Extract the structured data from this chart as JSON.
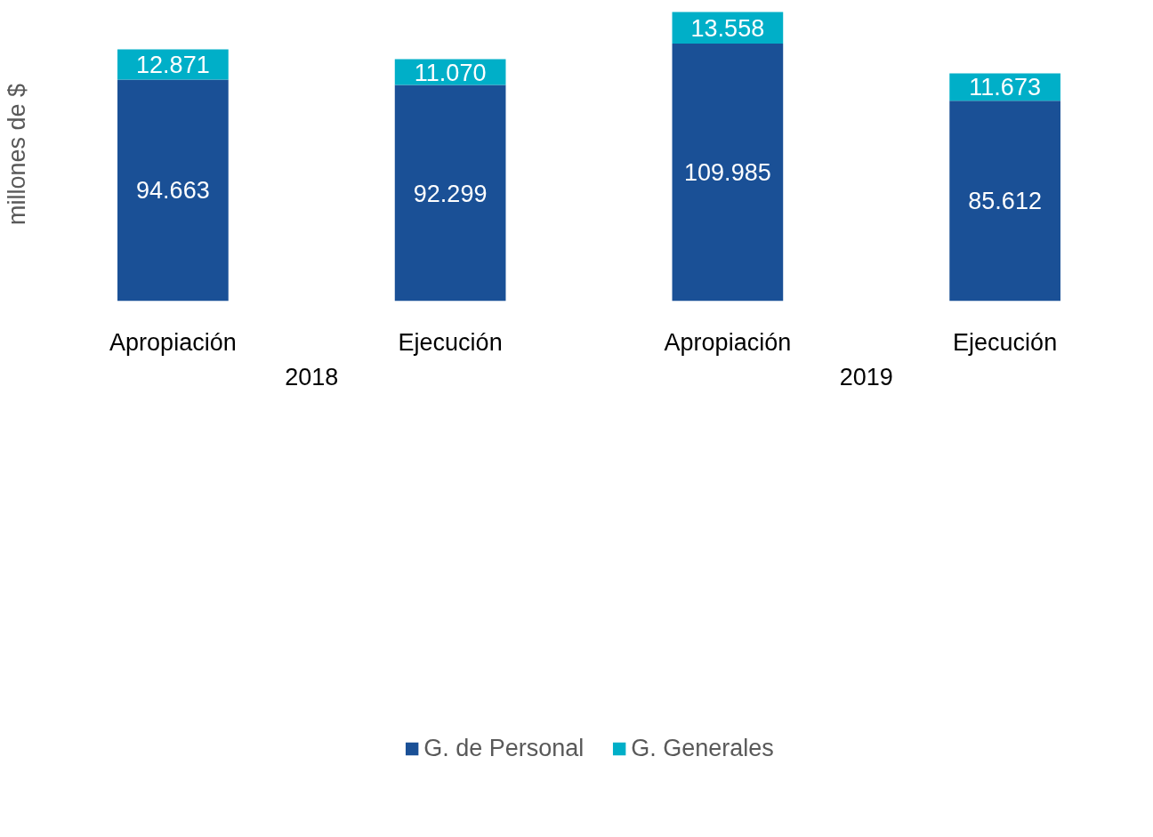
{
  "chart_data": {
    "type": "bar",
    "stacked": true,
    "ylabel": "millones de $",
    "categories": [
      "Apropiación",
      "Ejecución",
      "Apropiación",
      "Ejecución"
    ],
    "series": [
      {
        "name": "G. de Personal",
        "color": "#1a5096",
        "values": [
          94663,
          92299,
          109985,
          85612
        ],
        "value_labels": [
          "94.663",
          "92.299",
          "109.985",
          "85.612"
        ]
      },
      {
        "name": "G. Generales",
        "color": "#00afc8",
        "values": [
          12871,
          11070,
          13558,
          11673
        ],
        "value_labels": [
          "12.871",
          "11.070",
          "13.558",
          "11.673"
        ]
      }
    ],
    "annotations": [
      "2018",
      "2019"
    ],
    "grid": false,
    "legend": "bottom"
  }
}
